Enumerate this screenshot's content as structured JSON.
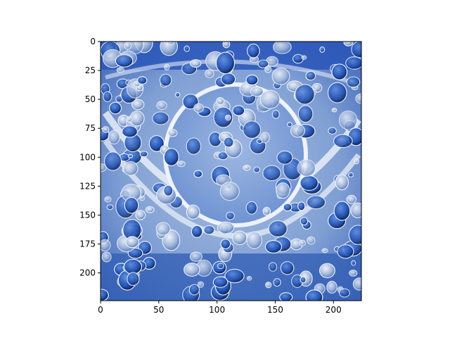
{
  "figure": {
    "background": "#ffffff"
  },
  "image_axes": {
    "x_ticks": [
      "0",
      "50",
      "100",
      "150",
      "200"
    ],
    "y_ticks": [
      "0",
      "25",
      "50",
      "75",
      "100",
      "125",
      "150",
      "175",
      "200"
    ],
    "x_range": [
      0,
      224
    ],
    "y_range": [
      0,
      224
    ],
    "image_description_colors": {
      "deep_blue": "#1f4fb0",
      "mid_blue": "#4f7fd0",
      "pale_blue": "#a9bedf",
      "white_highlight": "#f2f5fb",
      "dark_navy": "#0d1f4a"
    }
  }
}
